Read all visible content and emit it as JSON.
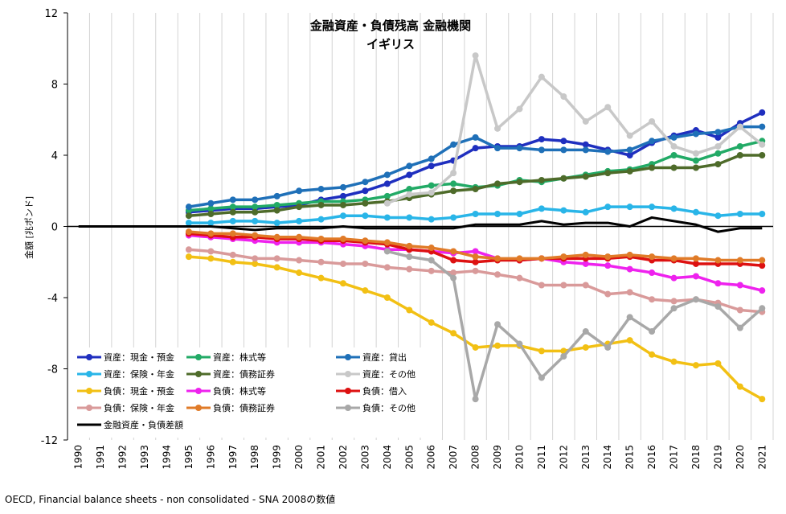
{
  "chart_data": {
    "type": "line",
    "title": "金融資産・負債残高 金融機関",
    "subtitle": "イギリス",
    "ylabel": "金額 [兆ポンド]",
    "xlabel": "",
    "ylim": [
      -12,
      12
    ],
    "yticks": [
      12,
      8,
      4,
      0,
      -4,
      -8,
      -12
    ],
    "grid": "vertical",
    "legend_position": "bottom-left",
    "categories": [
      "1990",
      "1991",
      "1992",
      "1993",
      "1994",
      "1995",
      "1996",
      "1997",
      "1998",
      "1999",
      "2000",
      "2001",
      "2002",
      "2003",
      "2004",
      "2005",
      "2006",
      "2007",
      "2008",
      "2009",
      "2010",
      "2011",
      "2012",
      "2013",
      "2014",
      "2015",
      "2016",
      "2017",
      "2018",
      "2019",
      "2020",
      "2021"
    ],
    "series": [
      {
        "name": "資産：現金・預金",
        "color": "#1f2fbf",
        "values": [
          null,
          null,
          null,
          null,
          null,
          0.8,
          0.9,
          1.0,
          1.0,
          1.1,
          1.2,
          1.5,
          1.7,
          2.0,
          2.4,
          2.9,
          3.4,
          3.7,
          4.4,
          4.5,
          4.5,
          4.9,
          4.8,
          4.6,
          4.3,
          4.0,
          4.7,
          5.1,
          5.4,
          5.0,
          5.8,
          6.4
        ]
      },
      {
        "name": "資産：株式等",
        "color": "#22aa66",
        "values": [
          null,
          null,
          null,
          null,
          null,
          0.9,
          1.0,
          1.1,
          1.1,
          1.2,
          1.3,
          1.4,
          1.4,
          1.5,
          1.7,
          2.1,
          2.3,
          2.4,
          2.2,
          2.3,
          2.6,
          2.5,
          2.7,
          2.9,
          3.1,
          3.2,
          3.5,
          4.0,
          3.7,
          4.1,
          4.5,
          4.8
        ]
      },
      {
        "name": "資産：貸出",
        "color": "#1f70b8",
        "values": [
          null,
          null,
          null,
          null,
          null,
          1.1,
          1.3,
          1.5,
          1.5,
          1.7,
          2.0,
          2.1,
          2.2,
          2.5,
          2.9,
          3.4,
          3.8,
          4.6,
          5.0,
          4.4,
          4.4,
          4.3,
          4.3,
          4.3,
          4.2,
          4.3,
          4.8,
          5.0,
          5.2,
          5.3,
          5.6,
          5.6
        ]
      },
      {
        "name": "資産：保険・年金",
        "color": "#29b5e8",
        "values": [
          null,
          null,
          null,
          null,
          null,
          0.2,
          0.2,
          0.3,
          0.3,
          0.2,
          0.3,
          0.4,
          0.6,
          0.6,
          0.5,
          0.5,
          0.4,
          0.5,
          0.7,
          0.7,
          0.7,
          1.0,
          0.9,
          0.8,
          1.1,
          1.1,
          1.1,
          1.0,
          0.8,
          0.6,
          0.7,
          0.7
        ]
      },
      {
        "name": "資産：債務証券",
        "color": "#4e6b2a",
        "values": [
          null,
          null,
          null,
          null,
          null,
          0.6,
          0.7,
          0.8,
          0.8,
          0.9,
          1.1,
          1.2,
          1.2,
          1.3,
          1.4,
          1.6,
          1.8,
          2.0,
          2.1,
          2.4,
          2.5,
          2.6,
          2.7,
          2.8,
          3.0,
          3.1,
          3.3,
          3.3,
          3.3,
          3.5,
          4.0,
          4.0
        ]
      },
      {
        "name": "資産：その他",
        "color": "#c8c8c8",
        "values": [
          null,
          null,
          null,
          null,
          null,
          null,
          null,
          null,
          null,
          null,
          null,
          null,
          null,
          null,
          1.3,
          1.8,
          1.9,
          3.0,
          9.6,
          5.5,
          6.6,
          8.4,
          7.3,
          5.9,
          6.7,
          5.1,
          5.9,
          4.5,
          4.1,
          4.5,
          5.6,
          4.6
        ]
      },
      {
        "name": "負債：現金・預金",
        "color": "#f2c014",
        "values": [
          null,
          null,
          null,
          null,
          null,
          -1.7,
          -1.8,
          -2.0,
          -2.1,
          -2.3,
          -2.6,
          -2.9,
          -3.2,
          -3.6,
          -4.0,
          -4.7,
          -5.4,
          -6.0,
          -6.8,
          -6.7,
          -6.7,
          -7.0,
          -7.0,
          -6.8,
          -6.6,
          -6.4,
          -7.2,
          -7.6,
          -7.8,
          -7.7,
          -9.0,
          -9.7
        ]
      },
      {
        "name": "負債：株式等",
        "color": "#ee22ee",
        "values": [
          null,
          null,
          null,
          null,
          null,
          -0.5,
          -0.6,
          -0.7,
          -0.8,
          -0.9,
          -0.9,
          -0.9,
          -1.0,
          -1.1,
          -1.3,
          -1.3,
          -1.4,
          -1.5,
          -1.4,
          -1.8,
          -1.9,
          -1.8,
          -2.0,
          -2.1,
          -2.2,
          -2.4,
          -2.6,
          -2.9,
          -2.8,
          -3.2,
          -3.3,
          -3.6
        ]
      },
      {
        "name": "負債：借入",
        "color": "#dd1111",
        "values": [
          null,
          null,
          null,
          null,
          null,
          -0.4,
          -0.5,
          -0.6,
          -0.6,
          -0.7,
          -0.7,
          -0.8,
          -0.8,
          -0.9,
          -1.0,
          -1.3,
          -1.4,
          -1.9,
          -2.0,
          -1.9,
          -1.9,
          -1.8,
          -1.8,
          -1.8,
          -1.8,
          -1.7,
          -1.9,
          -1.9,
          -2.1,
          -2.1,
          -2.1,
          -2.2
        ]
      },
      {
        "name": "負債：保険・年金",
        "color": "#d99a9a",
        "values": [
          null,
          null,
          null,
          null,
          null,
          -1.3,
          -1.4,
          -1.6,
          -1.8,
          -1.8,
          -1.9,
          -2.0,
          -2.1,
          -2.1,
          -2.3,
          -2.4,
          -2.5,
          -2.6,
          -2.5,
          -2.7,
          -2.9,
          -3.3,
          -3.3,
          -3.3,
          -3.8,
          -3.7,
          -4.1,
          -4.2,
          -4.1,
          -4.3,
          -4.7,
          -4.8
        ]
      },
      {
        "name": "負債：債務証券",
        "color": "#e07b28",
        "values": [
          null,
          null,
          null,
          null,
          null,
          -0.3,
          -0.4,
          -0.4,
          -0.5,
          -0.6,
          -0.6,
          -0.7,
          -0.7,
          -0.8,
          -0.9,
          -1.1,
          -1.2,
          -1.4,
          -1.7,
          -1.8,
          -1.8,
          -1.8,
          -1.7,
          -1.6,
          -1.7,
          -1.6,
          -1.7,
          -1.8,
          -1.8,
          -1.9,
          -1.9,
          -1.9
        ]
      },
      {
        "name": "負債：その他",
        "color": "#a8a8a8",
        "values": [
          null,
          null,
          null,
          null,
          null,
          null,
          null,
          null,
          null,
          null,
          null,
          null,
          null,
          null,
          -1.4,
          -1.7,
          -1.9,
          -2.9,
          -9.7,
          -5.5,
          -6.6,
          -8.5,
          -7.3,
          -5.9,
          -6.8,
          -5.1,
          -5.9,
          -4.6,
          -4.1,
          -4.5,
          -5.7,
          -4.6
        ]
      },
      {
        "name": "金融資産・負債差額",
        "color": "#000000",
        "values": [
          0.0,
          0.0,
          0.0,
          0.0,
          0.0,
          0.0,
          0.0,
          -0.1,
          -0.2,
          -0.1,
          -0.1,
          -0.1,
          0.0,
          -0.1,
          -0.1,
          -0.1,
          -0.1,
          -0.1,
          0.1,
          0.1,
          0.1,
          0.3,
          0.1,
          0.2,
          0.2,
          0.0,
          0.5,
          0.3,
          0.1,
          -0.3,
          -0.1,
          -0.1
        ]
      }
    ]
  },
  "footer": "OECD, Financial balance sheets - non consolidated - SNA 2008の数値"
}
